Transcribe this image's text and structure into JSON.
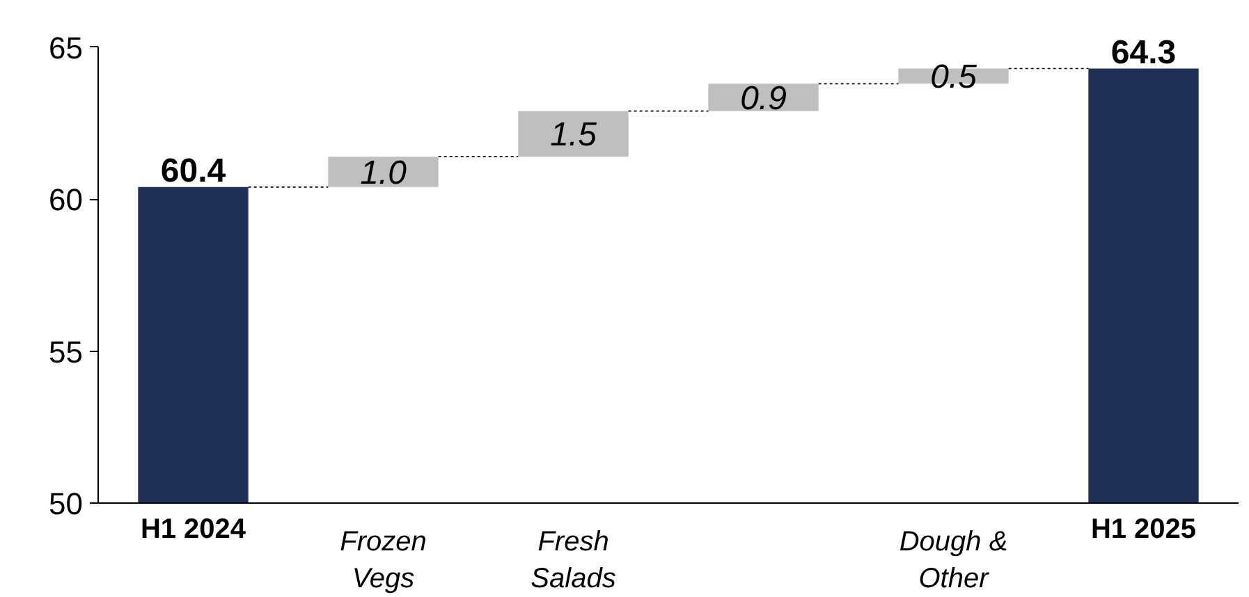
{
  "chart_data": {
    "type": "bar",
    "categories": [
      "H1 2024",
      "Frozen\nVegs",
      "Fresh\nSalads",
      null,
      "Dough &\nOther",
      "H1 2025"
    ],
    "values": [
      60.4,
      1.0,
      1.5,
      0.9,
      0.5,
      64.3
    ],
    "value_labels": [
      "60.4",
      "1.0",
      "1.5",
      "0.9",
      "0.5",
      "64.3"
    ],
    "base": [
      0,
      60.4,
      61.4,
      62.9,
      63.8,
      0
    ],
    "colors": [
      "#203158",
      "#bfbfbf",
      "#bfbfbf",
      "#bfbfbf",
      "#bfbfbf",
      "#203158"
    ],
    "ylim": [
      50,
      65
    ],
    "yticks": [
      50,
      55,
      60,
      65
    ],
    "grid": false
  }
}
